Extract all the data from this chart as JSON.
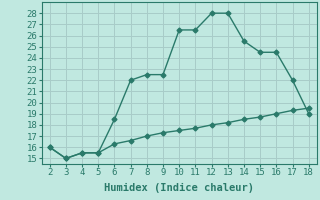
{
  "title": "",
  "xlabel": "Humidex (Indice chaleur)",
  "bg_color": "#c0e8e0",
  "grid_color": "#a8ccc8",
  "line_color": "#2a7a6a",
  "upper_x": [
    2,
    3,
    4,
    5,
    6,
    7,
    8,
    9,
    10,
    11,
    12,
    13,
    14,
    15,
    16,
    17,
    18
  ],
  "upper_y": [
    16.0,
    15.0,
    15.5,
    15.5,
    18.5,
    22.0,
    22.5,
    22.5,
    26.5,
    26.5,
    28.0,
    28.0,
    25.5,
    24.5,
    24.5,
    22.0,
    19.0
  ],
  "lower_x": [
    2,
    3,
    4,
    5,
    6,
    7,
    8,
    9,
    10,
    11,
    12,
    13,
    14,
    15,
    16,
    17,
    18
  ],
  "lower_y": [
    16.0,
    15.0,
    15.5,
    15.5,
    16.3,
    16.6,
    17.0,
    17.3,
    17.5,
    17.7,
    18.0,
    18.2,
    18.5,
    18.7,
    19.0,
    19.3,
    19.5
  ],
  "xlim": [
    1.5,
    18.5
  ],
  "ylim": [
    14.5,
    29.0
  ],
  "xticks": [
    2,
    3,
    4,
    5,
    6,
    7,
    8,
    9,
    10,
    11,
    12,
    13,
    14,
    15,
    16,
    17,
    18
  ],
  "yticks": [
    15,
    16,
    17,
    18,
    19,
    20,
    21,
    22,
    23,
    24,
    25,
    26,
    27,
    28
  ],
  "marker": "D",
  "marker_size": 2.5,
  "line_width": 1.0,
  "tick_fontsize": 6.5,
  "xlabel_fontsize": 7.5
}
